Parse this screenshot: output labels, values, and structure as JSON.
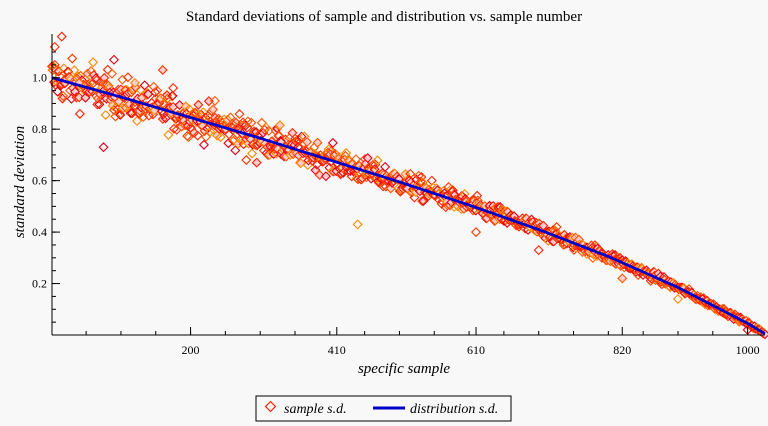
{
  "chart_data": {
    "type": "scatter",
    "title": "Standard deviations of sample and distribution vs. sample number",
    "xlabel": "specific sample",
    "ylabel": "standard deviation",
    "xlim": [
      1,
      1025
    ],
    "ylim": [
      0,
      1.17
    ],
    "x_ticks": [
      200,
      410,
      610,
      820,
      1000
    ],
    "y_ticks": [
      0.2,
      0.4,
      0.6,
      0.8,
      1.0
    ],
    "y_tick_labels": [
      "0.2",
      "0.4",
      "0.6",
      "0.8",
      "1.0"
    ],
    "legend_position": "bottom-center",
    "series": [
      {
        "name": "sample s.d.",
        "kind": "scatter",
        "marker": "diamond",
        "color": "#ff2200",
        "point_count": 1024,
        "spread_at_start": 0.08,
        "spread_at_end": 0.005,
        "sample_points": [
          [
            5,
            1.12
          ],
          [
            15,
            1.16
          ],
          [
            40,
            0.98
          ],
          [
            60,
            1.06
          ],
          [
            75,
            0.73
          ],
          [
            160,
            1.03
          ],
          [
            175,
            0.96
          ],
          [
            235,
            0.91
          ],
          [
            120,
            0.98
          ],
          [
            90,
            1.07
          ],
          [
            280,
            0.68
          ],
          [
            295,
            0.67
          ],
          [
            260,
            0.82
          ],
          [
            440,
            0.43
          ],
          [
            330,
            0.75
          ],
          [
            610,
            0.4
          ],
          [
            700,
            0.33
          ],
          [
            820,
            0.22
          ],
          [
            900,
            0.14
          ],
          [
            1000,
            0.02
          ]
        ]
      },
      {
        "name": "distribution s.d.",
        "kind": "line",
        "color": "#0000c8",
        "x": [
          1,
          100,
          200,
          300,
          400,
          500,
          600,
          700,
          800,
          900,
          1000,
          1025
        ],
        "y": [
          1.0,
          0.925,
          0.845,
          0.765,
          0.68,
          0.595,
          0.505,
          0.41,
          0.305,
          0.185,
          0.045,
          0.005
        ]
      }
    ]
  },
  "legend": {
    "items": [
      {
        "label": "sample s.d.",
        "marker": "diamond",
        "color": "#ff2200"
      },
      {
        "label": "distribution s.d.",
        "marker": "line",
        "color": "#0000c8"
      }
    ]
  }
}
